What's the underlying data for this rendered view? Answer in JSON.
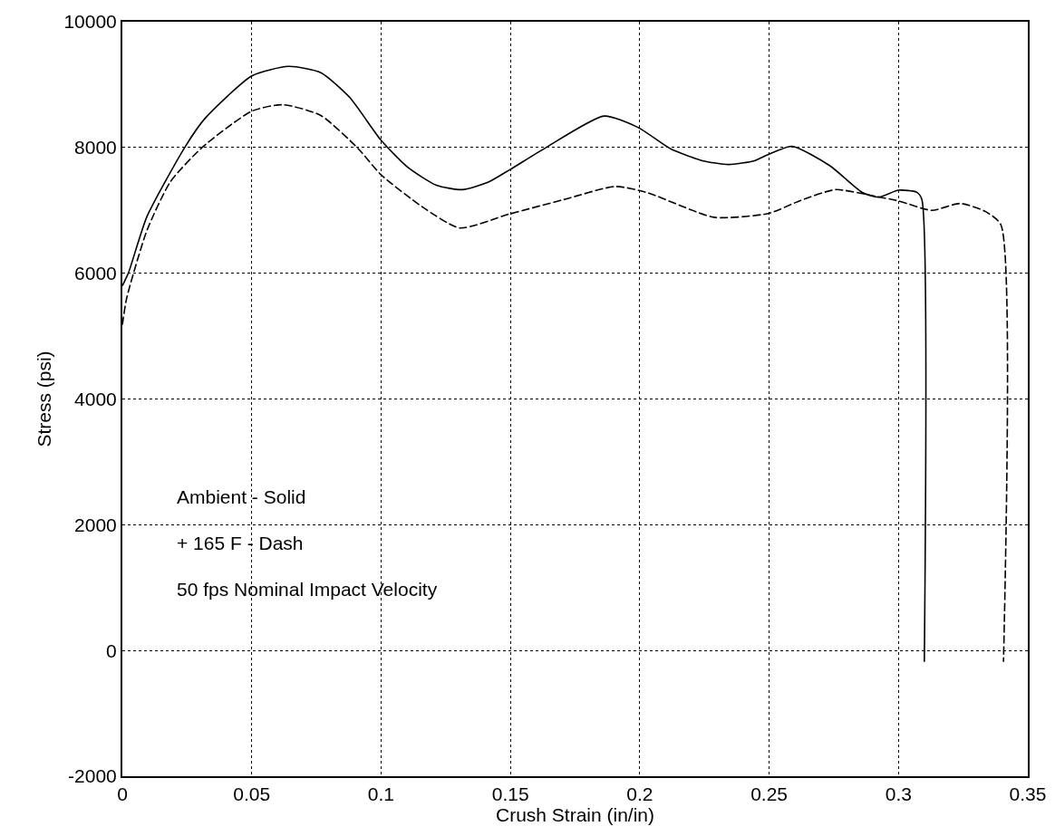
{
  "chart_data": {
    "type": "line",
    "xlabel": "Crush Strain (in/in)",
    "ylabel": "Stress (psi)",
    "annotations": [
      "Ambient - Solid",
      "+ 165 F - Dash",
      "50 fps Nominal Impact Velocity"
    ],
    "xlim": [
      0,
      0.35
    ],
    "xticks": [
      0,
      0.05,
      0.1,
      0.15,
      0.2,
      0.25,
      0.3,
      0.35
    ],
    "ylim": [
      -2000,
      10000
    ],
    "yticks": [
      -2000,
      0,
      2000,
      4000,
      6000,
      8000,
      10000
    ],
    "grid": true,
    "marker": "none",
    "series": [
      {
        "color": "#000000",
        "line_style": "solid",
        "x": [
          0,
          0.0023,
          0.0095,
          0.0241,
          0.0319,
          0.0501,
          0.0643,
          0.0767,
          0.0878,
          0.0999,
          0.1102,
          0.1214,
          0.1314,
          0.1415,
          0.1495,
          0.1638,
          0.1862,
          0.1993,
          0.2119,
          0.2242,
          0.2343,
          0.2444,
          0.2497,
          0.2589,
          0.2735,
          0.2862,
          0.2923,
          0.3,
          0.307,
          0.309,
          0.31
        ],
        "values": [
          5800,
          6000,
          6900,
          8000,
          8460,
          9140,
          9290,
          9190,
          8800,
          8120,
          7690,
          7400,
          7330,
          7450,
          7640,
          8000,
          8500,
          8320,
          7980,
          7790,
          7730,
          7790,
          7890,
          8020,
          7710,
          7280,
          7210,
          7320,
          7290,
          7180,
          -180
        ]
      },
      {
        "color": "#000000",
        "line_style": "dashed",
        "x": [
          0,
          0.0017,
          0.0095,
          0.0185,
          0.0308,
          0.0501,
          0.0621,
          0.0767,
          0.0912,
          0.0999,
          0.1158,
          0.1304,
          0.1495,
          0.1705,
          0.1906,
          0.203,
          0.2287,
          0.2497,
          0.2623,
          0.2757,
          0.2903,
          0.3,
          0.3129,
          0.3238,
          0.3337,
          0.3396,
          0.3406
        ],
        "values": [
          5180,
          5610,
          6680,
          7450,
          8000,
          8580,
          8680,
          8510,
          7980,
          7570,
          7060,
          6720,
          6940,
          7170,
          7380,
          7280,
          6890,
          6950,
          7160,
          7330,
          7230,
          7150,
          7000,
          7110,
          6980,
          6770,
          -180
        ]
      }
    ]
  }
}
